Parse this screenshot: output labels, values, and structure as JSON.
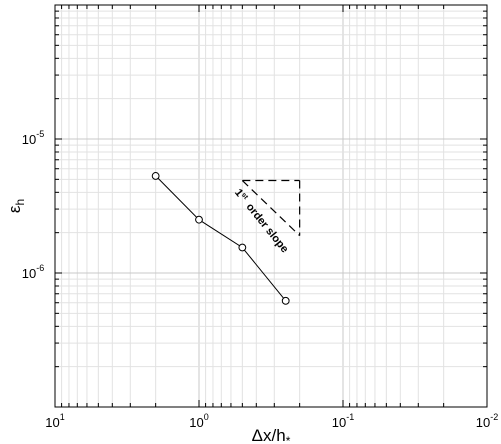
{
  "chart_data": {
    "type": "line",
    "xlabel": "Δx/h",
    "xlabel_sub": "*",
    "ylabel": "ε",
    "ylabel_sub": "h",
    "x_scale": "log",
    "y_scale": "log",
    "x_reversed": true,
    "xlim": [
      10,
      0.01
    ],
    "ylim": [
      1e-07,
      0.0001
    ],
    "grid": true,
    "x_ticks": [
      {
        "mantissa": "10",
        "exp": "1"
      },
      {
        "mantissa": "10",
        "exp": "0"
      },
      {
        "mantissa": "10",
        "exp": "-1"
      },
      {
        "mantissa": "10",
        "exp": "-2"
      }
    ],
    "y_ticks": [
      {
        "mantissa": "10",
        "exp": "-6"
      },
      {
        "mantissa": "10",
        "exp": "-5"
      }
    ],
    "series": [
      {
        "marker": "circle",
        "x": [
          2.0,
          1.0,
          0.5,
          0.25
        ],
        "y": [
          5.3e-06,
          2.5e-06,
          1.55e-06,
          6.2e-07
        ]
      }
    ],
    "annotation": {
      "sup": "st",
      "lines": [
        "1",
        "order slope"
      ],
      "triangle": {
        "x": [
          0.5,
          0.2,
          0.2
        ],
        "y": [
          4.9e-06,
          4.9e-06,
          1.9e-06
        ]
      }
    }
  }
}
